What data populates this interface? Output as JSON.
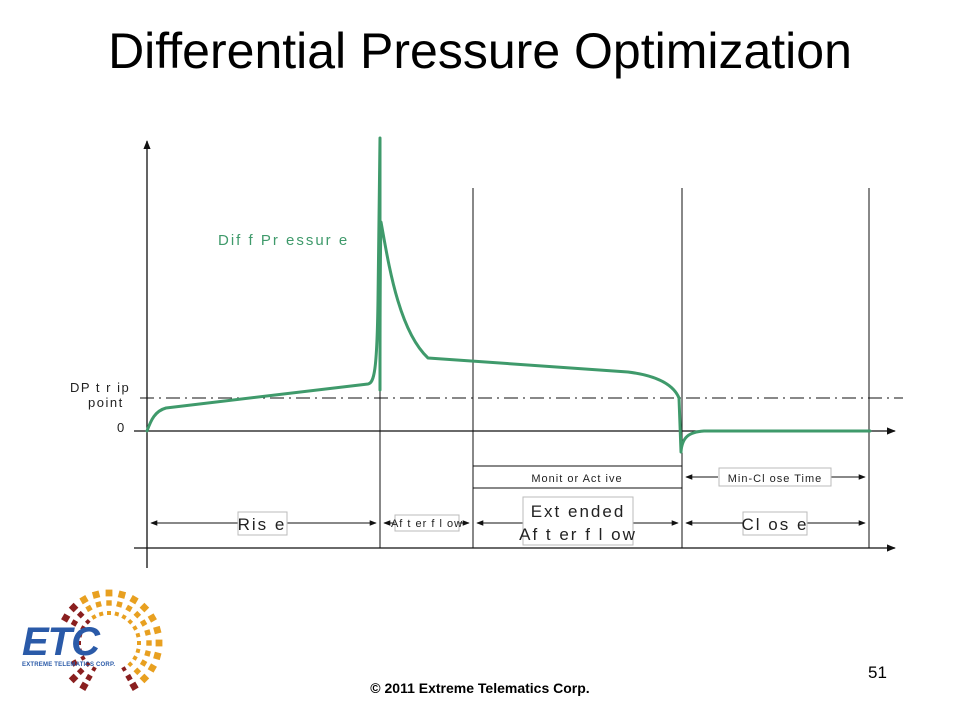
{
  "slide": {
    "title": "Differential Pressure Optimization",
    "copyright": "© 2011 Extreme Telematics Corp.",
    "page_number": "51"
  },
  "diagram": {
    "series_label": "Dif f  Pr essur e",
    "dp_trip_label_line1": "DP  t r ip",
    "dp_trip_label_line2": "point",
    "zero_label": "0",
    "phases": {
      "rise": "Ris e",
      "afterflow": "Af t er f l ow",
      "extended_line1": "Ext ended",
      "extended_line2": "Af t er f l ow",
      "close": "Cl os e"
    },
    "windows": {
      "monitor_active": "Monit or  Act ive",
      "min_close_time": "Min-Cl ose Time"
    },
    "colors": {
      "curve": "#3f9a6b",
      "lines": "#111111"
    }
  },
  "logo": {
    "name": "ETC",
    "tagline": "EXTREME TELEMATICS CORP.",
    "colors": {
      "text": "#2a5aa8",
      "dots": "#e8a020",
      "dots_dark": "#8a1f1f"
    }
  }
}
